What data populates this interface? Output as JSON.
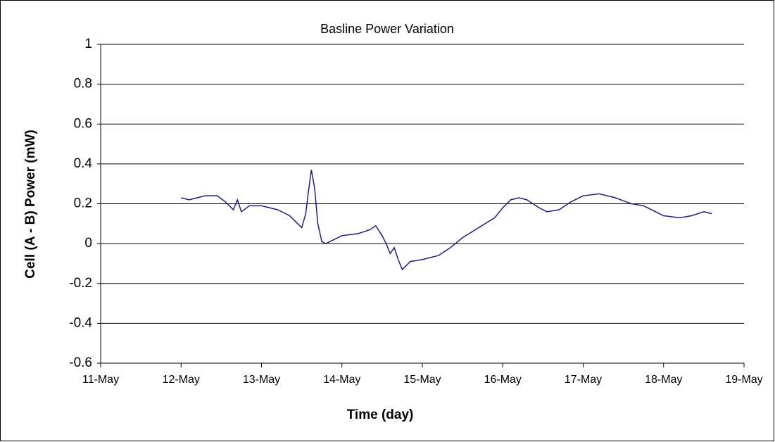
{
  "chart_data": {
    "type": "line",
    "title": "Basline Power Variation",
    "x_label": "Time (day)",
    "y_label": "Cell (A - B) Power (mW)",
    "x": [
      12.0,
      12.1,
      12.2,
      12.3,
      12.45,
      12.55,
      12.65,
      12.7,
      12.75,
      12.85,
      13.0,
      13.2,
      13.35,
      13.45,
      13.5,
      13.55,
      13.58,
      13.62,
      13.66,
      13.7,
      13.75,
      13.8,
      13.9,
      14.0,
      14.2,
      14.35,
      14.42,
      14.5,
      14.55,
      14.6,
      14.65,
      14.7,
      14.75,
      14.85,
      15.0,
      15.2,
      15.35,
      15.5,
      15.7,
      15.9,
      16.0,
      16.1,
      16.2,
      16.3,
      16.45,
      16.55,
      16.7,
      16.85,
      17.0,
      17.2,
      17.4,
      17.6,
      17.75,
      17.9,
      18.0,
      18.2,
      18.35,
      18.5,
      18.6
    ],
    "series": [
      {
        "name": "Cell (A - B) Power",
        "color": "#1c1c8a",
        "values": [
          0.23,
          0.22,
          0.23,
          0.24,
          0.24,
          0.21,
          0.17,
          0.22,
          0.16,
          0.19,
          0.19,
          0.17,
          0.14,
          0.1,
          0.08,
          0.15,
          0.25,
          0.37,
          0.28,
          0.1,
          0.01,
          0.0,
          0.02,
          0.04,
          0.05,
          0.07,
          0.09,
          0.04,
          0.0,
          -0.05,
          -0.02,
          -0.08,
          -0.13,
          -0.09,
          -0.08,
          -0.06,
          -0.02,
          0.03,
          0.08,
          0.13,
          0.18,
          0.22,
          0.23,
          0.22,
          0.18,
          0.16,
          0.17,
          0.21,
          0.24,
          0.25,
          0.23,
          0.2,
          0.19,
          0.16,
          0.14,
          0.13,
          0.14,
          0.16,
          0.15
        ]
      }
    ],
    "xlim": [
      11,
      19
    ],
    "xticks": [
      {
        "value": 11,
        "label": "11-May"
      },
      {
        "value": 12,
        "label": "12-May"
      },
      {
        "value": 13,
        "label": "13-May"
      },
      {
        "value": 14,
        "label": "14-May"
      },
      {
        "value": 15,
        "label": "15-May"
      },
      {
        "value": 16,
        "label": "16-May"
      },
      {
        "value": 17,
        "label": "17-May"
      },
      {
        "value": 18,
        "label": "18-May"
      },
      {
        "value": 19,
        "label": "19-May"
      }
    ],
    "ylim": [
      -0.6,
      1
    ],
    "yticks": [
      {
        "value": -0.6,
        "label": "-0.6"
      },
      {
        "value": -0.4,
        "label": "-0.4"
      },
      {
        "value": -0.2,
        "label": "-0.2"
      },
      0,
      {
        "value": 0.2,
        "label": "0.2"
      },
      {
        "value": 0.4,
        "label": "0.4"
      },
      {
        "value": 0.6,
        "label": "0.6"
      },
      {
        "value": 0.8,
        "label": "0.8"
      },
      1
    ],
    "grid": true
  }
}
